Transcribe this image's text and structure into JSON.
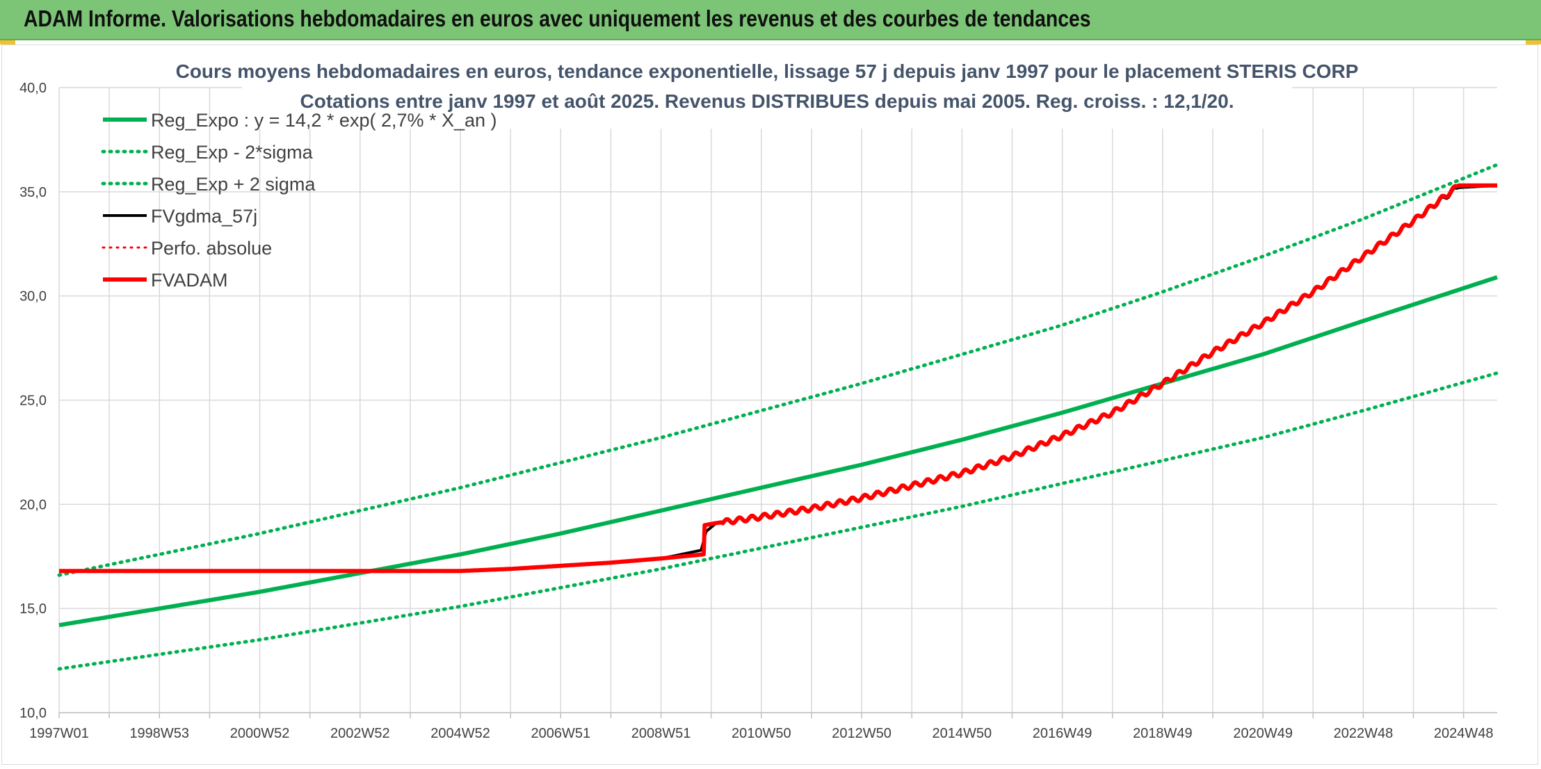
{
  "header": {
    "title": "ADAM Informe. Valorisations hebdomadaires en euros avec uniquement les revenus et des courbes de tendances"
  },
  "colors": {
    "header_bg": "#7cc576",
    "trend": "#00b050",
    "black_line": "#000000",
    "red_line": "#ff0000"
  },
  "chart_data": {
    "type": "line",
    "title_line1": "Cours moyens hebdomadaires en euros, tendance exponentielle, lissage 57 j depuis janv 1997 pour le placement STERIS CORP",
    "title_line2": "Cotations entre janv 1997 et août 2025. Revenus DISTRIBUES depuis mai 2005. Reg. croiss. : 12,1/20.",
    "xlabel": "",
    "ylabel": "",
    "ylim": [
      10,
      40
    ],
    "y_ticks": [
      "10,0",
      "15,0",
      "20,0",
      "25,0",
      "30,0",
      "35,0",
      "40,0"
    ],
    "x_range": [
      1997.0,
      2025.67
    ],
    "x_ticks": [
      {
        "label": "1997W01",
        "x": 1997.0
      },
      {
        "label": "1998W53",
        "x": 1999.0
      },
      {
        "label": "2000W52",
        "x": 2001.0
      },
      {
        "label": "2002W52",
        "x": 2003.0
      },
      {
        "label": "2004W52",
        "x": 2005.0
      },
      {
        "label": "2006W51",
        "x": 2007.0
      },
      {
        "label": "2008W51",
        "x": 2009.0
      },
      {
        "label": "2010W50",
        "x": 2011.0
      },
      {
        "label": "2012W50",
        "x": 2013.0
      },
      {
        "label": "2014W50",
        "x": 2015.0
      },
      {
        "label": "2016W49",
        "x": 2017.0
      },
      {
        "label": "2018W49",
        "x": 2019.0
      },
      {
        "label": "2020W49",
        "x": 2021.0
      },
      {
        "label": "2022W48",
        "x": 2023.0
      },
      {
        "label": "2024W48",
        "x": 2025.0
      }
    ],
    "grid": true,
    "legend_position": "top-left",
    "series": [
      {
        "name": "Reg_Expo : y = 14,2 * exp( 2,7% *  X_an )",
        "color": "#00b050",
        "style": "solid",
        "width": 6,
        "x": [
          1997,
          1999,
          2001,
          2003,
          2005,
          2007,
          2009,
          2011,
          2013,
          2015,
          2017,
          2019,
          2021,
          2023,
          2025.67
        ],
        "y": [
          14.2,
          15.0,
          15.8,
          16.7,
          17.6,
          18.6,
          19.7,
          20.8,
          21.9,
          23.1,
          24.4,
          25.8,
          27.2,
          28.8,
          30.9
        ]
      },
      {
        "name": "Reg_Exp - 2*sigma",
        "color": "#00b050",
        "style": "dotted",
        "width": 5,
        "x": [
          1997,
          1999,
          2001,
          2003,
          2005,
          2007,
          2009,
          2011,
          2013,
          2015,
          2017,
          2019,
          2021,
          2023,
          2025.67
        ],
        "y": [
          12.1,
          12.8,
          13.5,
          14.3,
          15.1,
          16.0,
          16.9,
          17.9,
          18.9,
          19.9,
          21.0,
          22.1,
          23.2,
          24.5,
          26.3
        ]
      },
      {
        "name": "Reg_Exp + 2 sigma",
        "color": "#00b050",
        "style": "dotted",
        "width": 5,
        "x": [
          1997,
          1999,
          2001,
          2003,
          2005,
          2007,
          2009,
          2011,
          2013,
          2015,
          2017,
          2019,
          2021,
          2023,
          2025.67
        ],
        "y": [
          16.6,
          17.6,
          18.6,
          19.7,
          20.8,
          22.0,
          23.2,
          24.5,
          25.8,
          27.2,
          28.6,
          30.2,
          31.9,
          33.7,
          36.3
        ]
      },
      {
        "name": "FVgdma_57j",
        "color": "#000000",
        "style": "solid",
        "width": 4,
        "x": [
          1997,
          2005,
          2006,
          2007,
          2008,
          2009,
          2009.8,
          2009.9,
          2010.1,
          2011,
          2012,
          2013,
          2014,
          2015,
          2016,
          2017,
          2018,
          2019,
          2020,
          2021,
          2022,
          2023,
          2024,
          2024.9,
          2025.67
        ],
        "y": [
          16.8,
          16.8,
          16.9,
          17.05,
          17.2,
          17.4,
          17.8,
          18.7,
          19.1,
          19.4,
          19.8,
          20.3,
          20.9,
          21.5,
          22.3,
          23.3,
          24.4,
          25.8,
          27.3,
          28.7,
          30.2,
          31.9,
          33.6,
          35.2,
          35.3
        ]
      },
      {
        "name": "Perfo. absolue",
        "color": "#ff0000",
        "style": "dotted",
        "width": 3,
        "x": [],
        "y": []
      },
      {
        "name": "FVADAM",
        "color": "#ff0000",
        "style": "solid",
        "width": 6,
        "x": [
          1997,
          2005,
          2006,
          2007,
          2008,
          2009,
          2009.85,
          2009.87,
          2010.1,
          2011,
          2012,
          2013,
          2014,
          2015,
          2016,
          2017,
          2018,
          2019,
          2020,
          2021,
          2022,
          2023,
          2024,
          2024.9,
          2025.67
        ],
        "y": [
          16.8,
          16.8,
          16.9,
          17.05,
          17.2,
          17.4,
          17.6,
          19.0,
          19.1,
          19.4,
          19.8,
          20.3,
          20.9,
          21.5,
          22.3,
          23.3,
          24.4,
          25.8,
          27.3,
          28.7,
          30.2,
          31.9,
          33.6,
          35.3,
          35.3
        ]
      }
    ]
  }
}
